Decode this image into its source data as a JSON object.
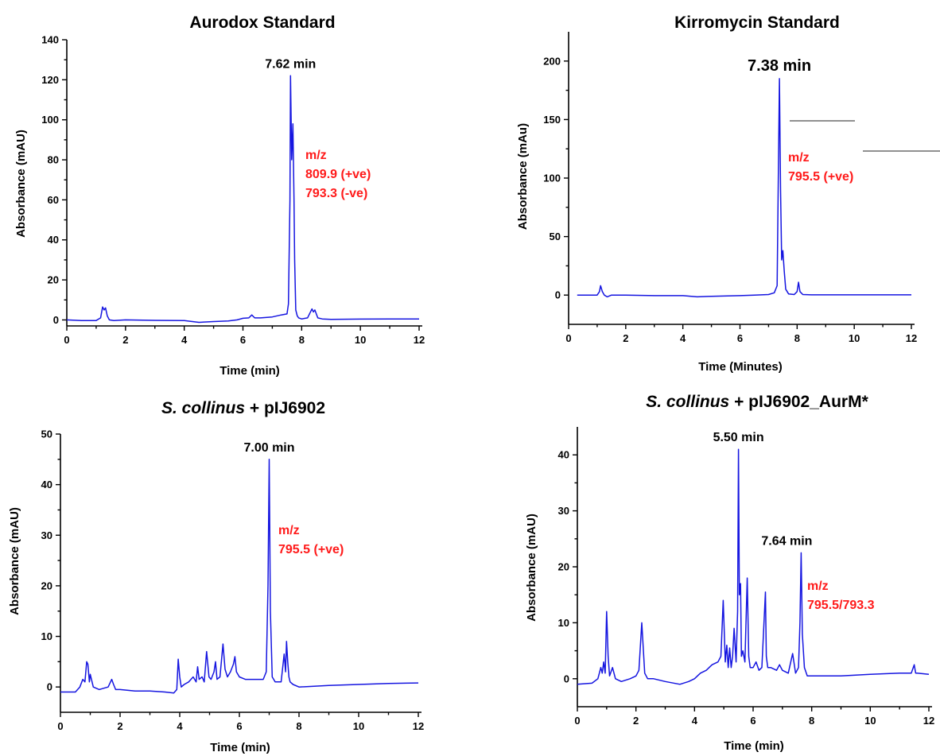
{
  "chart_data": [
    {
      "type": "line",
      "title": "Aurodox Standard",
      "xlabel": "Time (min)",
      "ylabel": "Absorbance (mAU)",
      "xlim": [
        0,
        12
      ],
      "ylim": [
        -3,
        140
      ],
      "xticks": [
        0,
        2,
        4,
        6,
        8,
        10,
        12
      ],
      "yticks": [
        0,
        20,
        40,
        60,
        80,
        100,
        120,
        140
      ],
      "peak_label": {
        "text": "7.62 min",
        "x": 7.62,
        "y": 122
      },
      "mz_lines": [
        "m/z",
        "809.9 (+ve)",
        "793.3 (-ve)"
      ],
      "series": [
        {
          "color": "#1515e0",
          "x": [
            0,
            0.5,
            1.0,
            1.15,
            1.22,
            1.27,
            1.32,
            1.38,
            1.45,
            1.6,
            2.0,
            3.0,
            4.0,
            4.5,
            5.0,
            5.5,
            5.8,
            6.0,
            6.2,
            6.3,
            6.4,
            6.6,
            7.0,
            7.3,
            7.5,
            7.55,
            7.6,
            7.62,
            7.66,
            7.7,
            7.74,
            7.76,
            7.8,
            7.85,
            7.9,
            8.0,
            8.2,
            8.35,
            8.4,
            8.45,
            8.55,
            8.7,
            9.0,
            10.0,
            11.0,
            12.0
          ],
          "y": [
            0,
            -0.3,
            -0.3,
            1,
            6.5,
            5,
            6,
            2,
            0,
            -0.3,
            0,
            -0.2,
            -0.3,
            -1.2,
            -0.8,
            -0.5,
            0,
            0.8,
            1,
            2.5,
            1,
            1,
            1.5,
            2.5,
            3,
            8,
            60,
            122,
            80,
            98,
            60,
            30,
            5,
            2,
            1,
            0.5,
            1,
            5.5,
            4,
            5,
            1,
            0.5,
            0.3,
            0.4,
            0.5,
            0.5
          ]
        }
      ]
    },
    {
      "type": "line",
      "title": "Kirromycin Standard",
      "xlabel": "Time (Minutes)",
      "ylabel": "Absorbance (mAu)",
      "xlim": [
        0,
        12
      ],
      "ylim": [
        -25,
        225
      ],
      "xticks": [
        0,
        2,
        4,
        6,
        8,
        10,
        12
      ],
      "yticks": [
        0,
        50,
        100,
        150,
        200
      ],
      "peak_label": {
        "text": "7.38 min",
        "x": 7.38,
        "y": 185
      },
      "mz_lines": [
        "m/z",
        "795.5 (+ve)"
      ],
      "series": [
        {
          "color": "#1515e0",
          "x": [
            0.3,
            1.0,
            1.08,
            1.12,
            1.18,
            1.25,
            1.35,
            1.5,
            2.0,
            3.0,
            4.0,
            4.5,
            5.0,
            6.0,
            6.5,
            7.0,
            7.2,
            7.3,
            7.35,
            7.38,
            7.42,
            7.46,
            7.5,
            7.55,
            7.6,
            7.7,
            7.9,
            8.0,
            8.05,
            8.1,
            8.2,
            8.5,
            9.0,
            10.0,
            11.0,
            12.0
          ],
          "y": [
            0,
            0,
            3,
            8,
            3,
            0,
            -1.5,
            0,
            0,
            -0.5,
            -0.5,
            -1.5,
            -1,
            -0.5,
            0,
            0.5,
            2,
            8,
            120,
            185,
            90,
            30,
            38,
            20,
            5,
            1,
            0.5,
            3,
            11,
            3,
            0.5,
            0.2,
            0.2,
            0.2,
            0.2,
            0.2
          ]
        }
      ]
    },
    {
      "type": "line",
      "title_italic": "S. collinus",
      "title_rest": " + pIJ6902",
      "xlabel": "Time (min)",
      "ylabel": "Absorbance (mAU)",
      "xlim": [
        0,
        12
      ],
      "ylim": [
        -5,
        50
      ],
      "xticks": [
        0,
        2,
        4,
        6,
        8,
        10,
        12
      ],
      "yticks": [
        0,
        10,
        20,
        30,
        40,
        50
      ],
      "peak_label": {
        "text": "7.00 min",
        "x": 7.0,
        "y": 45
      },
      "mz_lines": [
        "m/z",
        "795.5 (+ve)"
      ],
      "series": [
        {
          "color": "#1515e0",
          "x": [
            0,
            0.5,
            0.65,
            0.75,
            0.82,
            0.88,
            0.92,
            0.97,
            1.0,
            1.1,
            1.3,
            1.6,
            1.72,
            1.78,
            1.85,
            2.0,
            2.5,
            3.0,
            3.5,
            3.8,
            3.9,
            3.95,
            4.0,
            4.05,
            4.15,
            4.3,
            4.45,
            4.55,
            4.6,
            4.65,
            4.75,
            4.82,
            4.9,
            4.98,
            5.05,
            5.15,
            5.2,
            5.25,
            5.35,
            5.45,
            5.52,
            5.6,
            5.7,
            5.8,
            5.85,
            5.9,
            6.0,
            6.2,
            6.5,
            6.8,
            6.9,
            6.96,
            7.0,
            7.04,
            7.1,
            7.2,
            7.4,
            7.5,
            7.55,
            7.58,
            7.62,
            7.66,
            7.7,
            7.8,
            8.0,
            9.0,
            10.0,
            11.0,
            12.0
          ],
          "y": [
            -1,
            -1,
            0,
            1.5,
            1,
            5,
            4.5,
            1,
            2.5,
            0,
            -0.5,
            0,
            1.5,
            0.5,
            -0.5,
            -0.5,
            -0.8,
            -0.8,
            -1,
            -1.2,
            -0.5,
            5.5,
            2,
            0,
            0.5,
            1,
            2,
            1,
            4,
            1.5,
            2,
            1,
            7,
            2,
            1.5,
            3,
            5,
            1.5,
            2,
            8.5,
            3.5,
            2,
            3,
            4.5,
            6,
            3,
            2,
            1.5,
            1.5,
            1.5,
            3,
            20,
            45,
            15,
            2,
            1,
            1,
            6.5,
            3,
            9,
            5,
            2,
            1,
            0.5,
            0,
            0.3,
            0.5,
            0.7,
            0.8
          ]
        }
      ]
    },
    {
      "type": "line",
      "title_italic": "S. collinus",
      "title_rest": " + pIJ6902_AurM*",
      "xlabel": "Time (min)",
      "ylabel": "Absorbance (mAU)",
      "xlim": [
        0,
        12
      ],
      "ylim": [
        -5,
        45
      ],
      "xticks": [
        0,
        2,
        4,
        6,
        8,
        10,
        12
      ],
      "yticks": [
        0,
        10,
        20,
        30,
        40
      ],
      "peak_label": {
        "text": "5.50 min",
        "x": 5.5,
        "y": 41
      },
      "peak_label_2": {
        "text": "7.64 min",
        "x": 7.64,
        "y": 22.5
      },
      "mz_lines": [
        "m/z",
        "795.5/793.3"
      ],
      "series": [
        {
          "color": "#1515e0",
          "x": [
            0,
            0.5,
            0.7,
            0.8,
            0.85,
            0.9,
            0.95,
            1.0,
            1.05,
            1.1,
            1.2,
            1.3,
            1.5,
            1.8,
            2.0,
            2.1,
            2.2,
            2.3,
            2.4,
            2.6,
            3.0,
            3.5,
            3.8,
            4.0,
            4.2,
            4.4,
            4.6,
            4.8,
            4.9,
            4.98,
            5.05,
            5.1,
            5.15,
            5.2,
            5.25,
            5.3,
            5.35,
            5.42,
            5.47,
            5.5,
            5.53,
            5.57,
            5.6,
            5.65,
            5.72,
            5.8,
            5.85,
            5.9,
            6.0,
            6.1,
            6.2,
            6.3,
            6.42,
            6.45,
            6.5,
            6.6,
            6.8,
            6.9,
            7.0,
            7.2,
            7.35,
            7.45,
            7.55,
            7.6,
            7.64,
            7.68,
            7.75,
            7.85,
            8.0,
            9.0,
            10.0,
            11.0,
            11.4,
            11.5,
            11.55,
            11.6,
            12.0
          ],
          "y": [
            -1,
            -0.8,
            0,
            2,
            1,
            3,
            1,
            12,
            4,
            0.5,
            2,
            0,
            -0.5,
            0,
            0.5,
            1.5,
            10,
            1,
            0,
            0,
            -0.5,
            -1,
            -0.5,
            0,
            1,
            1.5,
            2.5,
            3,
            4,
            14,
            3,
            6,
            2,
            5.5,
            2,
            4,
            9,
            3,
            12,
            41,
            15,
            17,
            4,
            5,
            3,
            18,
            4,
            2,
            2,
            3,
            1.5,
            2,
            15.5,
            4,
            2,
            2,
            1.5,
            2.5,
            1.5,
            1,
            4.5,
            1,
            2,
            10,
            22.5,
            8,
            2,
            0.5,
            0.5,
            0.5,
            0.8,
            1,
            1,
            2.5,
            1,
            1,
            0.8
          ]
        }
      ]
    }
  ]
}
